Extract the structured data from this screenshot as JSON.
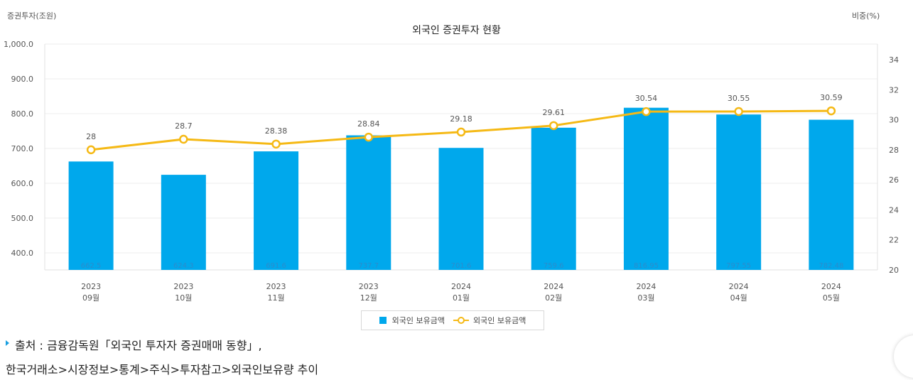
{
  "header": {
    "y1_unit": "증권투자(조원)",
    "y2_unit": "비중(%)",
    "title": "외국인 증권투자 현황"
  },
  "chart_data": {
    "type": "bar+line",
    "title": "외국인 증권투자 현황",
    "ylabel": "증권투자(조원)",
    "y2label": "비중(%)",
    "categories": [
      {
        "year": "2023",
        "month": "09월"
      },
      {
        "year": "2023",
        "month": "10월"
      },
      {
        "year": "2023",
        "month": "11월"
      },
      {
        "year": "2023",
        "month": "12월"
      },
      {
        "year": "2024",
        "month": "01월"
      },
      {
        "year": "2024",
        "month": "02월"
      },
      {
        "year": "2024",
        "month": "03월"
      },
      {
        "year": "2024",
        "month": "04월"
      },
      {
        "year": "2024",
        "month": "05월"
      }
    ],
    "bars": {
      "name": "외국인 보유금액",
      "values": [
        662.5,
        624.3,
        691.6,
        737.7,
        701.6,
        759.6,
        816.95,
        797.55,
        782.48
      ],
      "labels": [
        "662.5",
        "624.3",
        "691.6",
        "737.7",
        "701.6",
        "759.6",
        "816.95",
        "797.55",
        "782.48"
      ],
      "color": "#00a8ec"
    },
    "line": {
      "name": "외국인 보유금액",
      "values": [
        28,
        28.7,
        28.38,
        28.84,
        29.18,
        29.61,
        30.54,
        30.55,
        30.59
      ],
      "labels": [
        "28",
        "28.7",
        "28.38",
        "28.84",
        "29.18",
        "29.61",
        "30.54",
        "30.55",
        "30.59"
      ],
      "color": "#f5b915"
    },
    "y1_ticks": [
      "1,000.0",
      "900.0",
      "800.0",
      "700.0",
      "600.0",
      "500.0",
      "400.0"
    ],
    "y1_tick_values": [
      1000,
      900,
      800,
      700,
      600,
      500,
      400
    ],
    "y2_ticks": [
      "34",
      "32",
      "30",
      "28",
      "26",
      "24",
      "22",
      "20"
    ],
    "y2_tick_values": [
      34,
      32,
      30,
      28,
      26,
      24,
      22,
      20
    ],
    "legend": [
      "외국인 보유금액",
      "외국인 보유금액"
    ]
  },
  "source": {
    "line1": "출처 : 금융감독원「외국인 투자자 증권매매 동향」,",
    "line2": "한국거래소>시장정보>통계>주식>투자참고>외국인보유량 추이"
  }
}
